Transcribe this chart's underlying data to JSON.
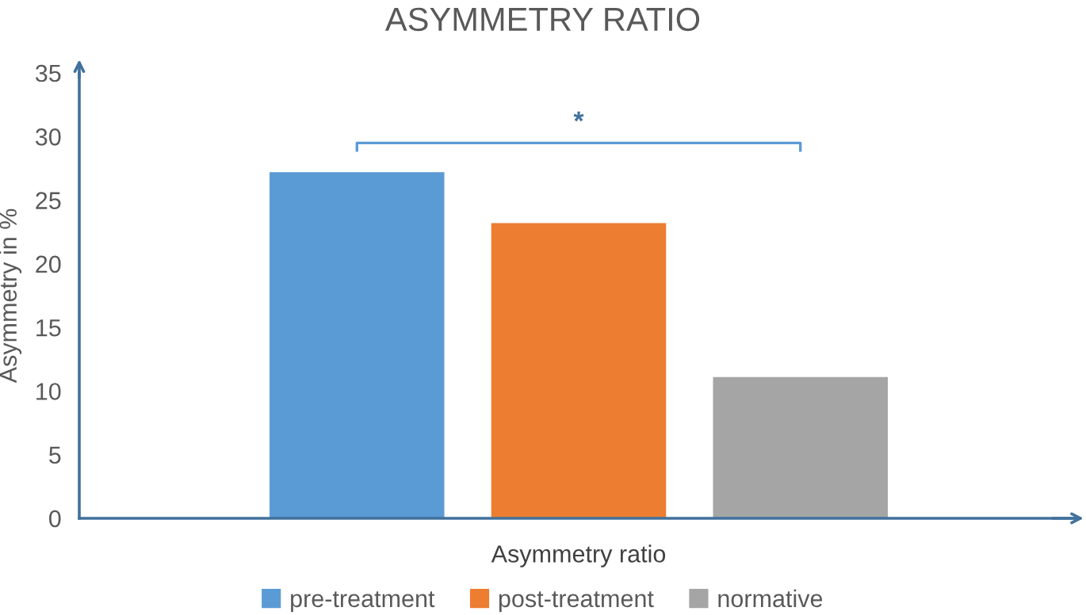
{
  "chart_data": {
    "type": "bar",
    "title": "ASYMMETRY RATIO",
    "xlabel": "Asymmetry ratio",
    "ylabel": "Asymmetry in %",
    "categories": [
      null
    ],
    "series": [
      {
        "name": "pre-treatment",
        "color": "#5b9bd5",
        "values": [
          27.2
        ]
      },
      {
        "name": "post-treatment",
        "color": "#ed7d31",
        "values": [
          23.2
        ]
      },
      {
        "name": "normative",
        "color": "#a5a5a5",
        "values": [
          11.1
        ]
      }
    ],
    "ylim": [
      0,
      35
    ],
    "yticks": [
      0,
      5,
      10,
      15,
      20,
      25,
      30,
      35
    ],
    "grid": false,
    "legend": "bottom",
    "annotations": [
      "*"
    ]
  }
}
